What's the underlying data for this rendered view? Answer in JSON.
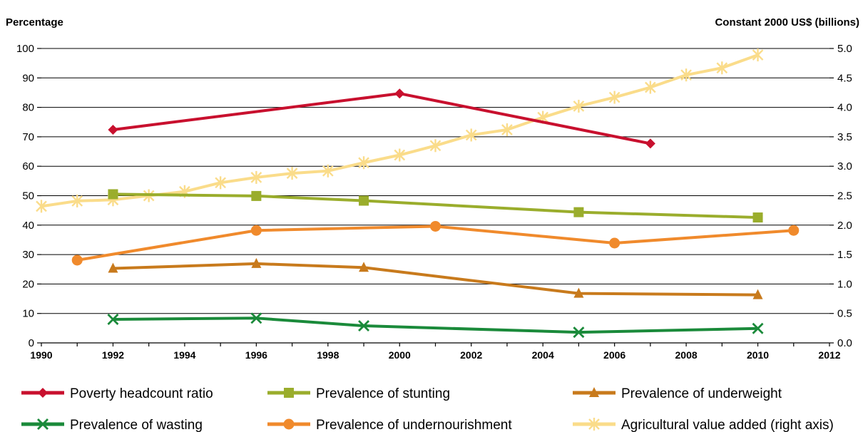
{
  "chart_data": {
    "type": "line",
    "y_left_title": "Percentage",
    "y_right_title": "Constant 2000 US$ (billions)",
    "ylim_left": [
      0,
      100
    ],
    "ylim_right": [
      0,
      5
    ],
    "xlim": [
      1990,
      2012
    ],
    "x_ticks": [
      "1990",
      "1992",
      "1994",
      "1996",
      "1998",
      "2000",
      "2002",
      "2004",
      "2006",
      "2008",
      "2010",
      "2012"
    ],
    "y_left_ticks": [
      "0",
      "10",
      "20",
      "30",
      "40",
      "50",
      "60",
      "70",
      "80",
      "90",
      "100"
    ],
    "y_right_ticks": [
      "0.0",
      "0.5",
      "1.0",
      "1.5",
      "2.0",
      "2.5",
      "3.0",
      "3.5",
      "4.0",
      "4.5",
      "5.0"
    ],
    "grid": "horizontal",
    "legend_position": "bottom",
    "series": [
      {
        "name": "Poverty headcount ratio",
        "axis": "left",
        "color": "#c8102e",
        "marker": "diamond",
        "x": [
          1992,
          2000,
          2007
        ],
        "y": [
          72.4,
          84.7,
          67.7
        ]
      },
      {
        "name": "Prevalence of stunting",
        "axis": "left",
        "color": "#9aad2c",
        "marker": "square",
        "x": [
          1992,
          1996,
          1999,
          2005,
          2010
        ],
        "y": [
          50.5,
          49.9,
          48.3,
          44.4,
          42.6
        ]
      },
      {
        "name": "Prevalence of underweight",
        "axis": "left",
        "color": "#c87a1c",
        "marker": "triangle",
        "x": [
          1992,
          1996,
          1999,
          2005,
          2010
        ],
        "y": [
          25.3,
          26.9,
          25.6,
          16.8,
          16.3
        ]
      },
      {
        "name": "Prevalence of wasting",
        "axis": "left",
        "color": "#1a8a3a",
        "marker": "x",
        "x": [
          1992,
          1996,
          1999,
          2005,
          2010
        ],
        "y": [
          8.0,
          8.4,
          5.8,
          3.6,
          4.9
        ]
      },
      {
        "name": "Prevalence of undernourishment",
        "axis": "left",
        "color": "#f08a2c",
        "marker": "circle",
        "x": [
          1991,
          1996,
          2001,
          2006,
          2011
        ],
        "y": [
          28.1,
          38.2,
          39.6,
          33.9,
          38.2
        ]
      },
      {
        "name": "Agricultural value added (right axis)",
        "axis": "right",
        "color": "#fadc8a",
        "marker": "asterisk",
        "x": [
          1990,
          1991,
          1992,
          1993,
          1994,
          1995,
          1996,
          1997,
          1998,
          1999,
          2000,
          2001,
          2002,
          2003,
          2004,
          2005,
          2006,
          2007,
          2008,
          2009,
          2010
        ],
        "y": [
          2.32,
          2.41,
          2.43,
          2.5,
          2.57,
          2.72,
          2.81,
          2.88,
          2.92,
          3.06,
          3.19,
          3.35,
          3.53,
          3.62,
          3.83,
          4.02,
          4.17,
          4.34,
          4.55,
          4.67,
          4.89
        ]
      }
    ]
  }
}
